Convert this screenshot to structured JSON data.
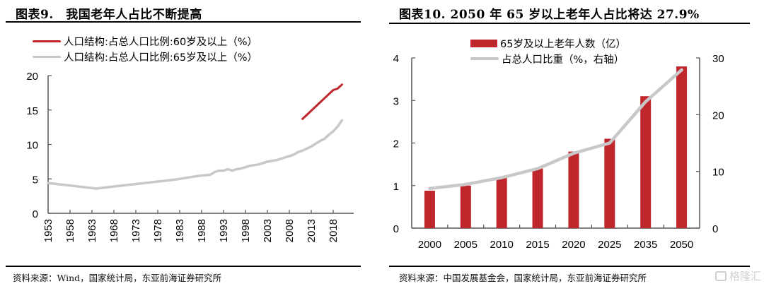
{
  "left_panel": {
    "title": "图表9.　我国老年人占比不断提高",
    "source": "资料来源：Wind，国家统计局，东亚前海证券研究所"
  },
  "right_panel": {
    "title": "图表10. 2050 年 65 岁以上老年人占比将达 27.9%",
    "source": "资料来源：中国发展基金会，国家统计局，东亚前海证券研究所",
    "watermark": "格隆汇"
  },
  "colors": {
    "red": "#c0272d",
    "gray": "#c8c8c8",
    "axis": "#555555"
  },
  "chart_data": [
    {
      "type": "line",
      "title": "我国老年人占比不断提高",
      "xlabel": "",
      "ylabel": "",
      "ylim": [
        0,
        20
      ],
      "yticks": [
        0,
        5,
        10,
        15,
        20
      ],
      "xlim": [
        1953,
        2020
      ],
      "xtick_labels": [
        "1953",
        "1958",
        "1963",
        "1968",
        "1973",
        "1978",
        "1983",
        "1988",
        "1993",
        "1998",
        "2003",
        "2008",
        "2013",
        "2018"
      ],
      "legend_position": "top-left",
      "grid": false,
      "series": [
        {
          "name": "人口结构:占总人口比例:60岁及以上（%）",
          "color": "#c0272d",
          "x": [
            2011,
            2012,
            2013,
            2014,
            2015,
            2016,
            2017,
            2018,
            2019,
            2020
          ],
          "y": [
            13.7,
            14.3,
            14.9,
            15.5,
            16.1,
            16.7,
            17.3,
            17.9,
            18.1,
            18.7
          ]
        },
        {
          "name": "人口结构:占总人口比例:65岁及以上（%）",
          "color": "#c8c8c8",
          "x": [
            1953,
            1964,
            1982,
            1987,
            1990,
            1991,
            1992,
            1993,
            1994,
            1995,
            1996,
            1997,
            1998,
            1999,
            2000,
            2001,
            2002,
            2003,
            2004,
            2005,
            2006,
            2007,
            2008,
            2009,
            2010,
            2011,
            2012,
            2013,
            2014,
            2015,
            2016,
            2017,
            2018,
            2019,
            2020
          ],
          "y": [
            4.4,
            3.6,
            4.9,
            5.4,
            5.6,
            6.0,
            6.2,
            6.2,
            6.4,
            6.2,
            6.4,
            6.5,
            6.7,
            6.9,
            7.0,
            7.1,
            7.3,
            7.5,
            7.6,
            7.7,
            7.9,
            8.1,
            8.3,
            8.5,
            8.9,
            9.1,
            9.4,
            9.7,
            10.1,
            10.5,
            10.8,
            11.4,
            11.9,
            12.6,
            13.5
          ]
        }
      ]
    },
    {
      "type": "bar",
      "title": "2050 年 65 岁以上老年人占比将达 27.9%",
      "categories": [
        "2000",
        "2005",
        "2010",
        "2015",
        "2020",
        "2025",
        "2035",
        "2050"
      ],
      "xlabel": "",
      "ylabel": "",
      "ylim": [
        0,
        4
      ],
      "yticks": [
        0,
        1,
        2,
        3,
        4
      ],
      "y2lim": [
        0,
        30
      ],
      "y2ticks": [
        0,
        10,
        20,
        30
      ],
      "legend_position": "top-center",
      "grid": false,
      "series": [
        {
          "name": "65岁及以上老年人数（亿）",
          "type": "bar",
          "axis": "left",
          "color": "#c0272d",
          "values": [
            0.88,
            1.0,
            1.18,
            1.4,
            1.8,
            2.1,
            3.1,
            3.8
          ]
        },
        {
          "name": "占总人口比重（%，右轴）",
          "type": "line",
          "axis": "right",
          "color": "#c8c8c8",
          "values": [
            7.0,
            7.7,
            8.9,
            10.5,
            13.2,
            15.0,
            22.3,
            27.9
          ]
        }
      ]
    }
  ]
}
